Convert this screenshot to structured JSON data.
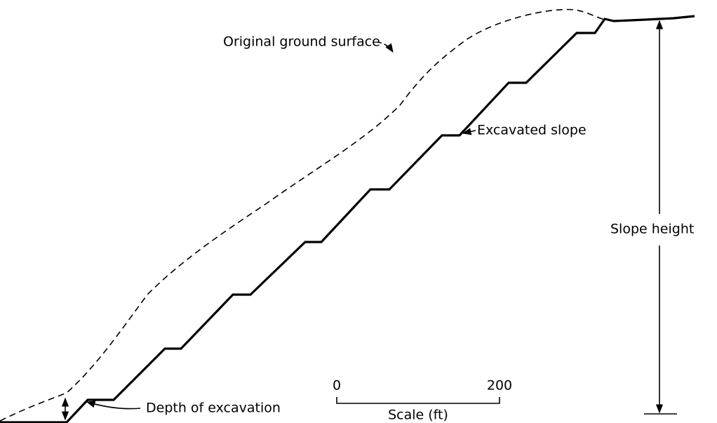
{
  "labels": {
    "ground": "Original ground surface",
    "excavated": "Excavated slope",
    "height": "Slope height",
    "depth": "Depth of excavation"
  },
  "scale": {
    "start": "0",
    "end": "200",
    "title": "Scale (ft)"
  }
}
